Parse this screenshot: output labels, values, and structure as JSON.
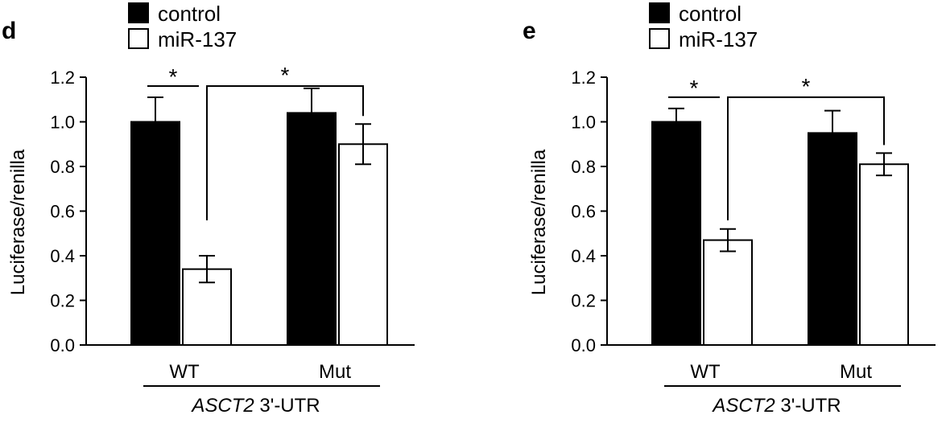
{
  "chart_data": [
    {
      "type": "bar",
      "panel_label": "d",
      "ylabel": "Luciferase/renilla",
      "xlabel_italic": "ASCT2",
      "xlabel_rest": " 3'-UTR",
      "categories": [
        "WT",
        "Mut"
      ],
      "ylim": [
        0,
        1.2
      ],
      "yticks": [
        "0.0",
        "0.2",
        "0.4",
        "0.6",
        "0.8",
        "1.0",
        "1.2"
      ],
      "series": [
        {
          "name": "control",
          "color": "#000000",
          "values": [
            1.0,
            1.04
          ],
          "errors": [
            0.11,
            0.11
          ]
        },
        {
          "name": "miR-137",
          "color": "#ffffff",
          "values": [
            0.34,
            0.9
          ],
          "errors": [
            0.06,
            0.09
          ]
        }
      ],
      "significance": [
        "*",
        "*"
      ]
    },
    {
      "type": "bar",
      "panel_label": "e",
      "ylabel": "Luciferase/renilla",
      "xlabel_italic": "ASCT2",
      "xlabel_rest": " 3'-UTR",
      "categories": [
        "WT",
        "Mut"
      ],
      "ylim": [
        0,
        1.2
      ],
      "yticks": [
        "0.0",
        "0.2",
        "0.4",
        "0.6",
        "0.8",
        "1.0",
        "1.2"
      ],
      "series": [
        {
          "name": "control",
          "color": "#000000",
          "values": [
            1.0,
            0.95
          ],
          "errors": [
            0.06,
            0.1
          ]
        },
        {
          "name": "miR-137",
          "color": "#ffffff",
          "values": [
            0.47,
            0.81
          ],
          "errors": [
            0.05,
            0.05
          ]
        }
      ],
      "significance": [
        "*",
        "*"
      ]
    }
  ]
}
